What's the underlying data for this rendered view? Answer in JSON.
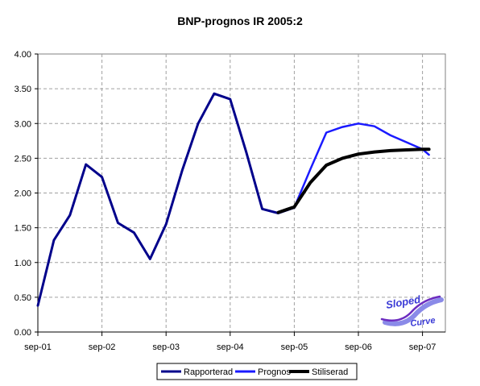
{
  "chart_data": {
    "type": "line",
    "title": "BNP-prognos IR 2005:2",
    "xlabel": "",
    "ylabel": "",
    "ylim": [
      0,
      4
    ],
    "y_ticks": [
      "0.00",
      "0.50",
      "1.00",
      "1.50",
      "2.00",
      "2.50",
      "3.00",
      "3.50",
      "4.00"
    ],
    "x_ticks": [
      "sep-01",
      "sep-02",
      "sep-03",
      "sep-04",
      "sep-05",
      "sep-06",
      "sep-07"
    ],
    "grid": true,
    "legend_position": "bottom",
    "series": [
      {
        "name": "Rapporterad",
        "color": "#00008b",
        "x": [
          0,
          1,
          2,
          3,
          4,
          5,
          6,
          7,
          8,
          9,
          10,
          11,
          12,
          13,
          14,
          15,
          16
        ],
        "values": [
          0.38,
          1.32,
          1.68,
          2.41,
          2.23,
          1.57,
          1.43,
          1.05,
          1.55,
          2.32,
          3.0,
          3.43,
          3.35,
          2.59,
          1.77,
          1.71,
          1.79
        ]
      },
      {
        "name": "Prognos",
        "color": "#1a1aff",
        "x": [
          16,
          17,
          18,
          19,
          20,
          21,
          22,
          23,
          24,
          24.4
        ],
        "values": [
          1.79,
          2.34,
          2.87,
          2.95,
          3.0,
          2.96,
          2.83,
          2.73,
          2.63,
          2.55
        ]
      },
      {
        "name": "Stiliserad",
        "color": "#000000",
        "x": [
          15,
          16,
          17,
          18,
          19,
          20,
          21,
          22,
          23,
          24,
          24.4
        ],
        "values": [
          1.72,
          1.8,
          2.15,
          2.4,
          2.5,
          2.56,
          2.59,
          2.61,
          2.62,
          2.63,
          2.63
        ]
      }
    ]
  },
  "logo": {
    "line1": "Sloped",
    "line2": "Curve"
  }
}
